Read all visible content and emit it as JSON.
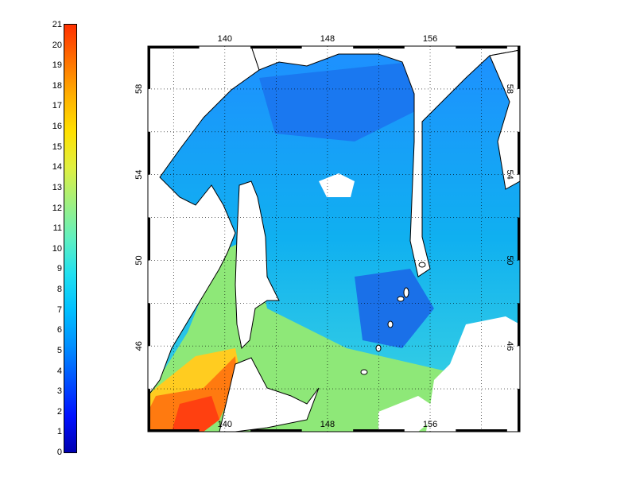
{
  "colorbar": {
    "ticks": [
      "0",
      "1",
      "2",
      "3",
      "4",
      "5",
      "6",
      "7",
      "8",
      "9",
      "10",
      "11",
      "12",
      "13",
      "14",
      "15",
      "16",
      "17",
      "18",
      "19",
      "20",
      "21"
    ],
    "range": [
      0,
      21
    ],
    "colors": [
      "#0000b0",
      "#0010ff",
      "#0050ff",
      "#0090ff",
      "#00c0ff",
      "#20e0f0",
      "#60f0c0",
      "#a0f080",
      "#e0f040",
      "#ffe000",
      "#ffb000",
      "#ff7000",
      "#ff3000"
    ]
  },
  "map": {
    "lon_ticks_top": [
      "140",
      "148",
      "156"
    ],
    "lon_ticks_bottom": [
      "140",
      "148",
      "156"
    ],
    "lat_ticks_left": [
      "58",
      "54",
      "50",
      "46"
    ],
    "lat_ticks_right": [
      "58",
      "54",
      "50",
      "46"
    ],
    "lon_range": [
      134,
      163
    ],
    "lat_range": [
      42,
      60
    ],
    "grid": true,
    "land_color": "#ffffff",
    "coast_color": "#000000"
  }
}
